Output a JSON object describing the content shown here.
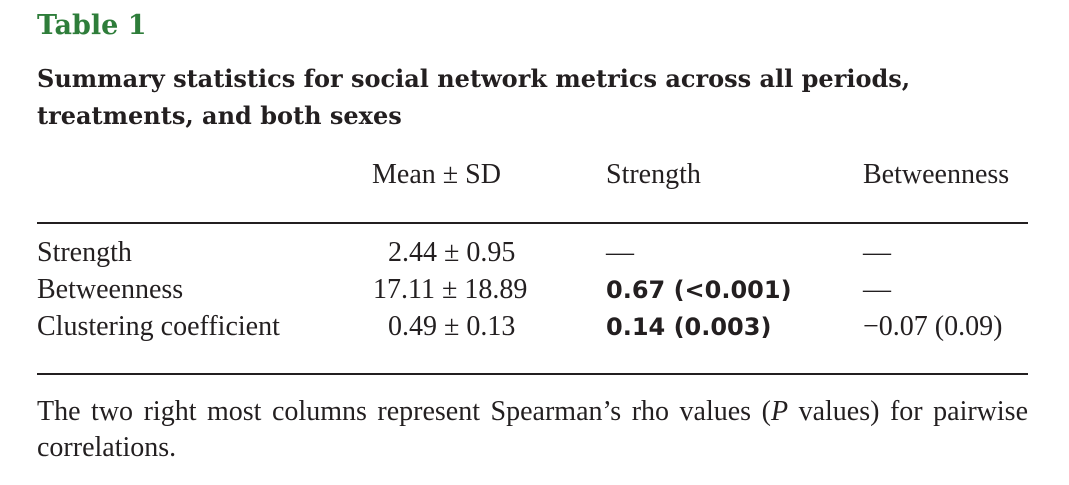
{
  "table": {
    "label": "Table 1",
    "title": "Summary statistics for social network metrics across all periods, treatments, and both sexes",
    "columns": [
      "",
      "Mean ± SD",
      "Strength",
      "Betweenness"
    ],
    "rows": [
      {
        "metric": "Strength",
        "mean_sd": "2.44 ± 0.95",
        "strength": "—",
        "betweenness": "—"
      },
      {
        "metric": "Betweenness",
        "mean_sd": "17.11 ± 18.89",
        "strength": "0.67 (<0.001)",
        "betweenness": "—"
      },
      {
        "metric": "Clustering coefficient",
        "mean_sd": "0.49 ± 0.13",
        "strength": "0.14 (0.003)",
        "betweenness": "−0.07 (0.09)"
      }
    ],
    "bold_cells": [
      "0.67 (<0.001)",
      "0.14 (0.003)"
    ],
    "footnote": {
      "before": "The two right most columns represent Spearman’s rho values (",
      "italic": "P",
      "after": " values) for pairwise correlations."
    }
  },
  "colors": {
    "label": "#2e7d3a",
    "text": "#231f20"
  }
}
